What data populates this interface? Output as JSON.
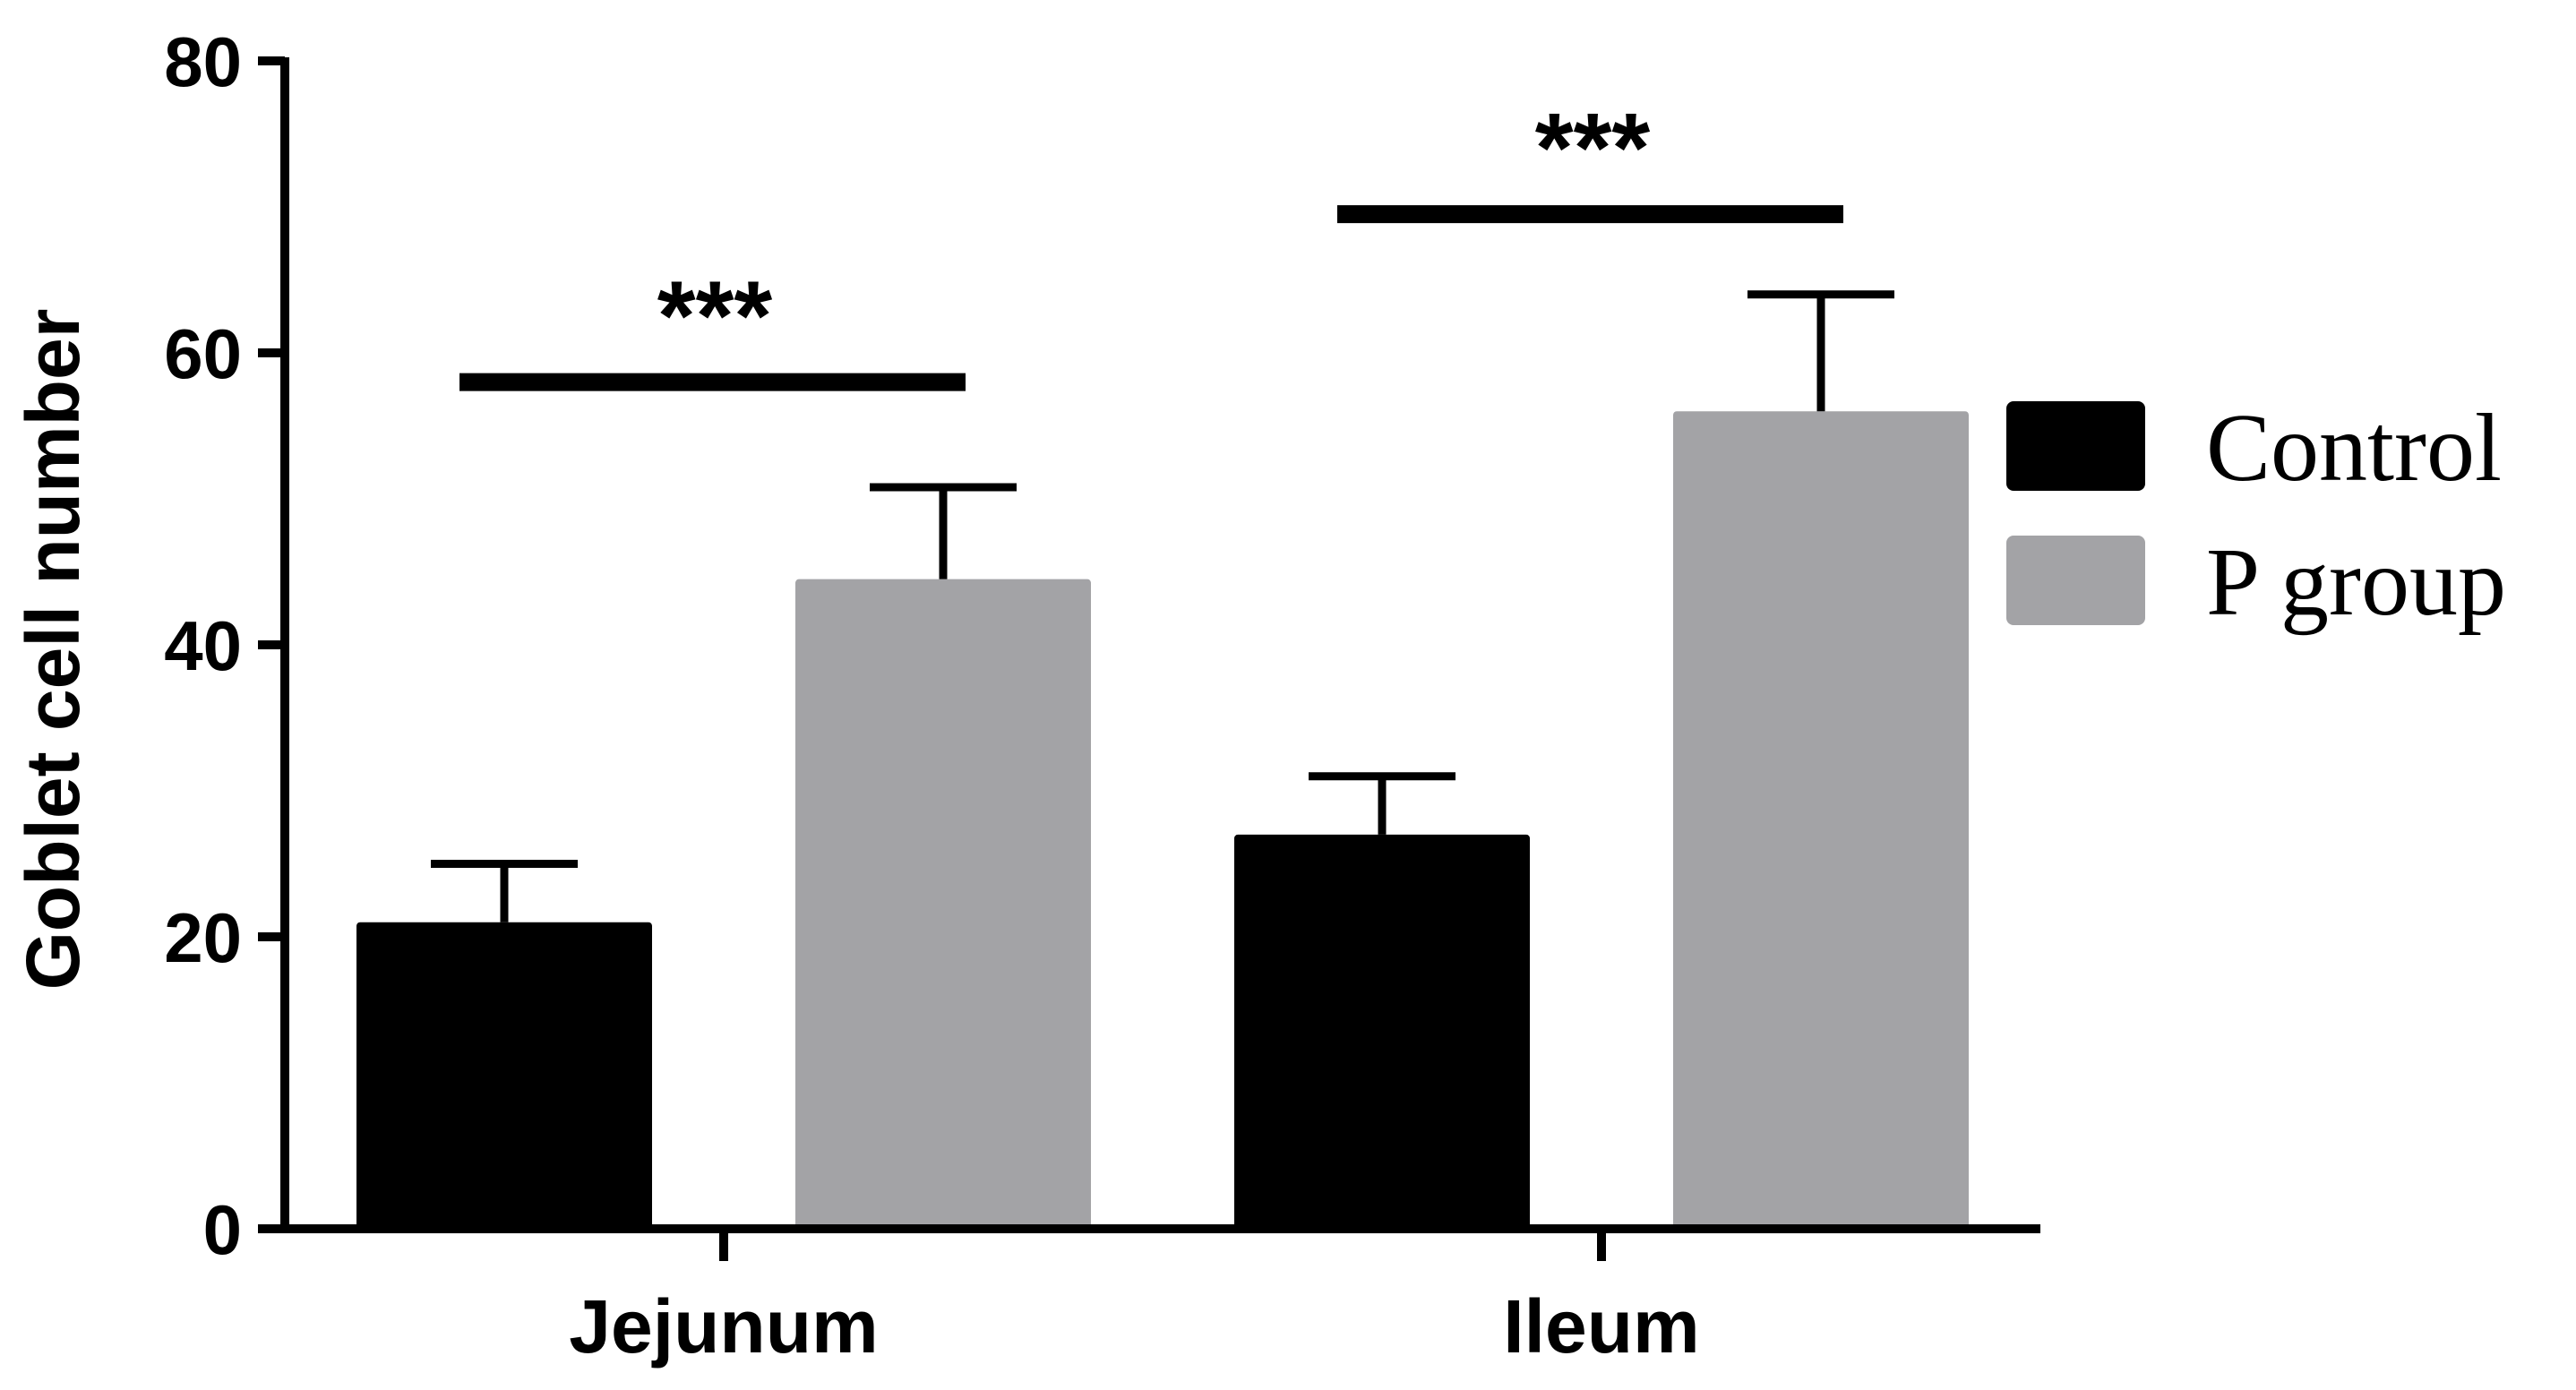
{
  "chart_data": {
    "type": "bar",
    "title": "",
    "xlabel": "",
    "ylabel": "Goblet cell number",
    "ylim": [
      0,
      80
    ],
    "yticks": [
      0,
      20,
      40,
      60,
      80
    ],
    "grid": false,
    "legend_position": "right",
    "categories": [
      "Jejunum",
      "Ileum"
    ],
    "series": [
      {
        "name": "Control",
        "color": "#000000",
        "values": [
          21,
          27
        ],
        "errors": [
          4,
          4
        ]
      },
      {
        "name": "P group",
        "color": "#a3a3a6",
        "values": [
          44.5,
          56
        ],
        "errors": [
          6.3,
          8
        ]
      }
    ],
    "annotations": [
      {
        "text": "***",
        "category": "Jejunum",
        "bracket_y": 58
      },
      {
        "text": "***",
        "category": "Ileum",
        "bracket_y": 69.5
      }
    ]
  }
}
